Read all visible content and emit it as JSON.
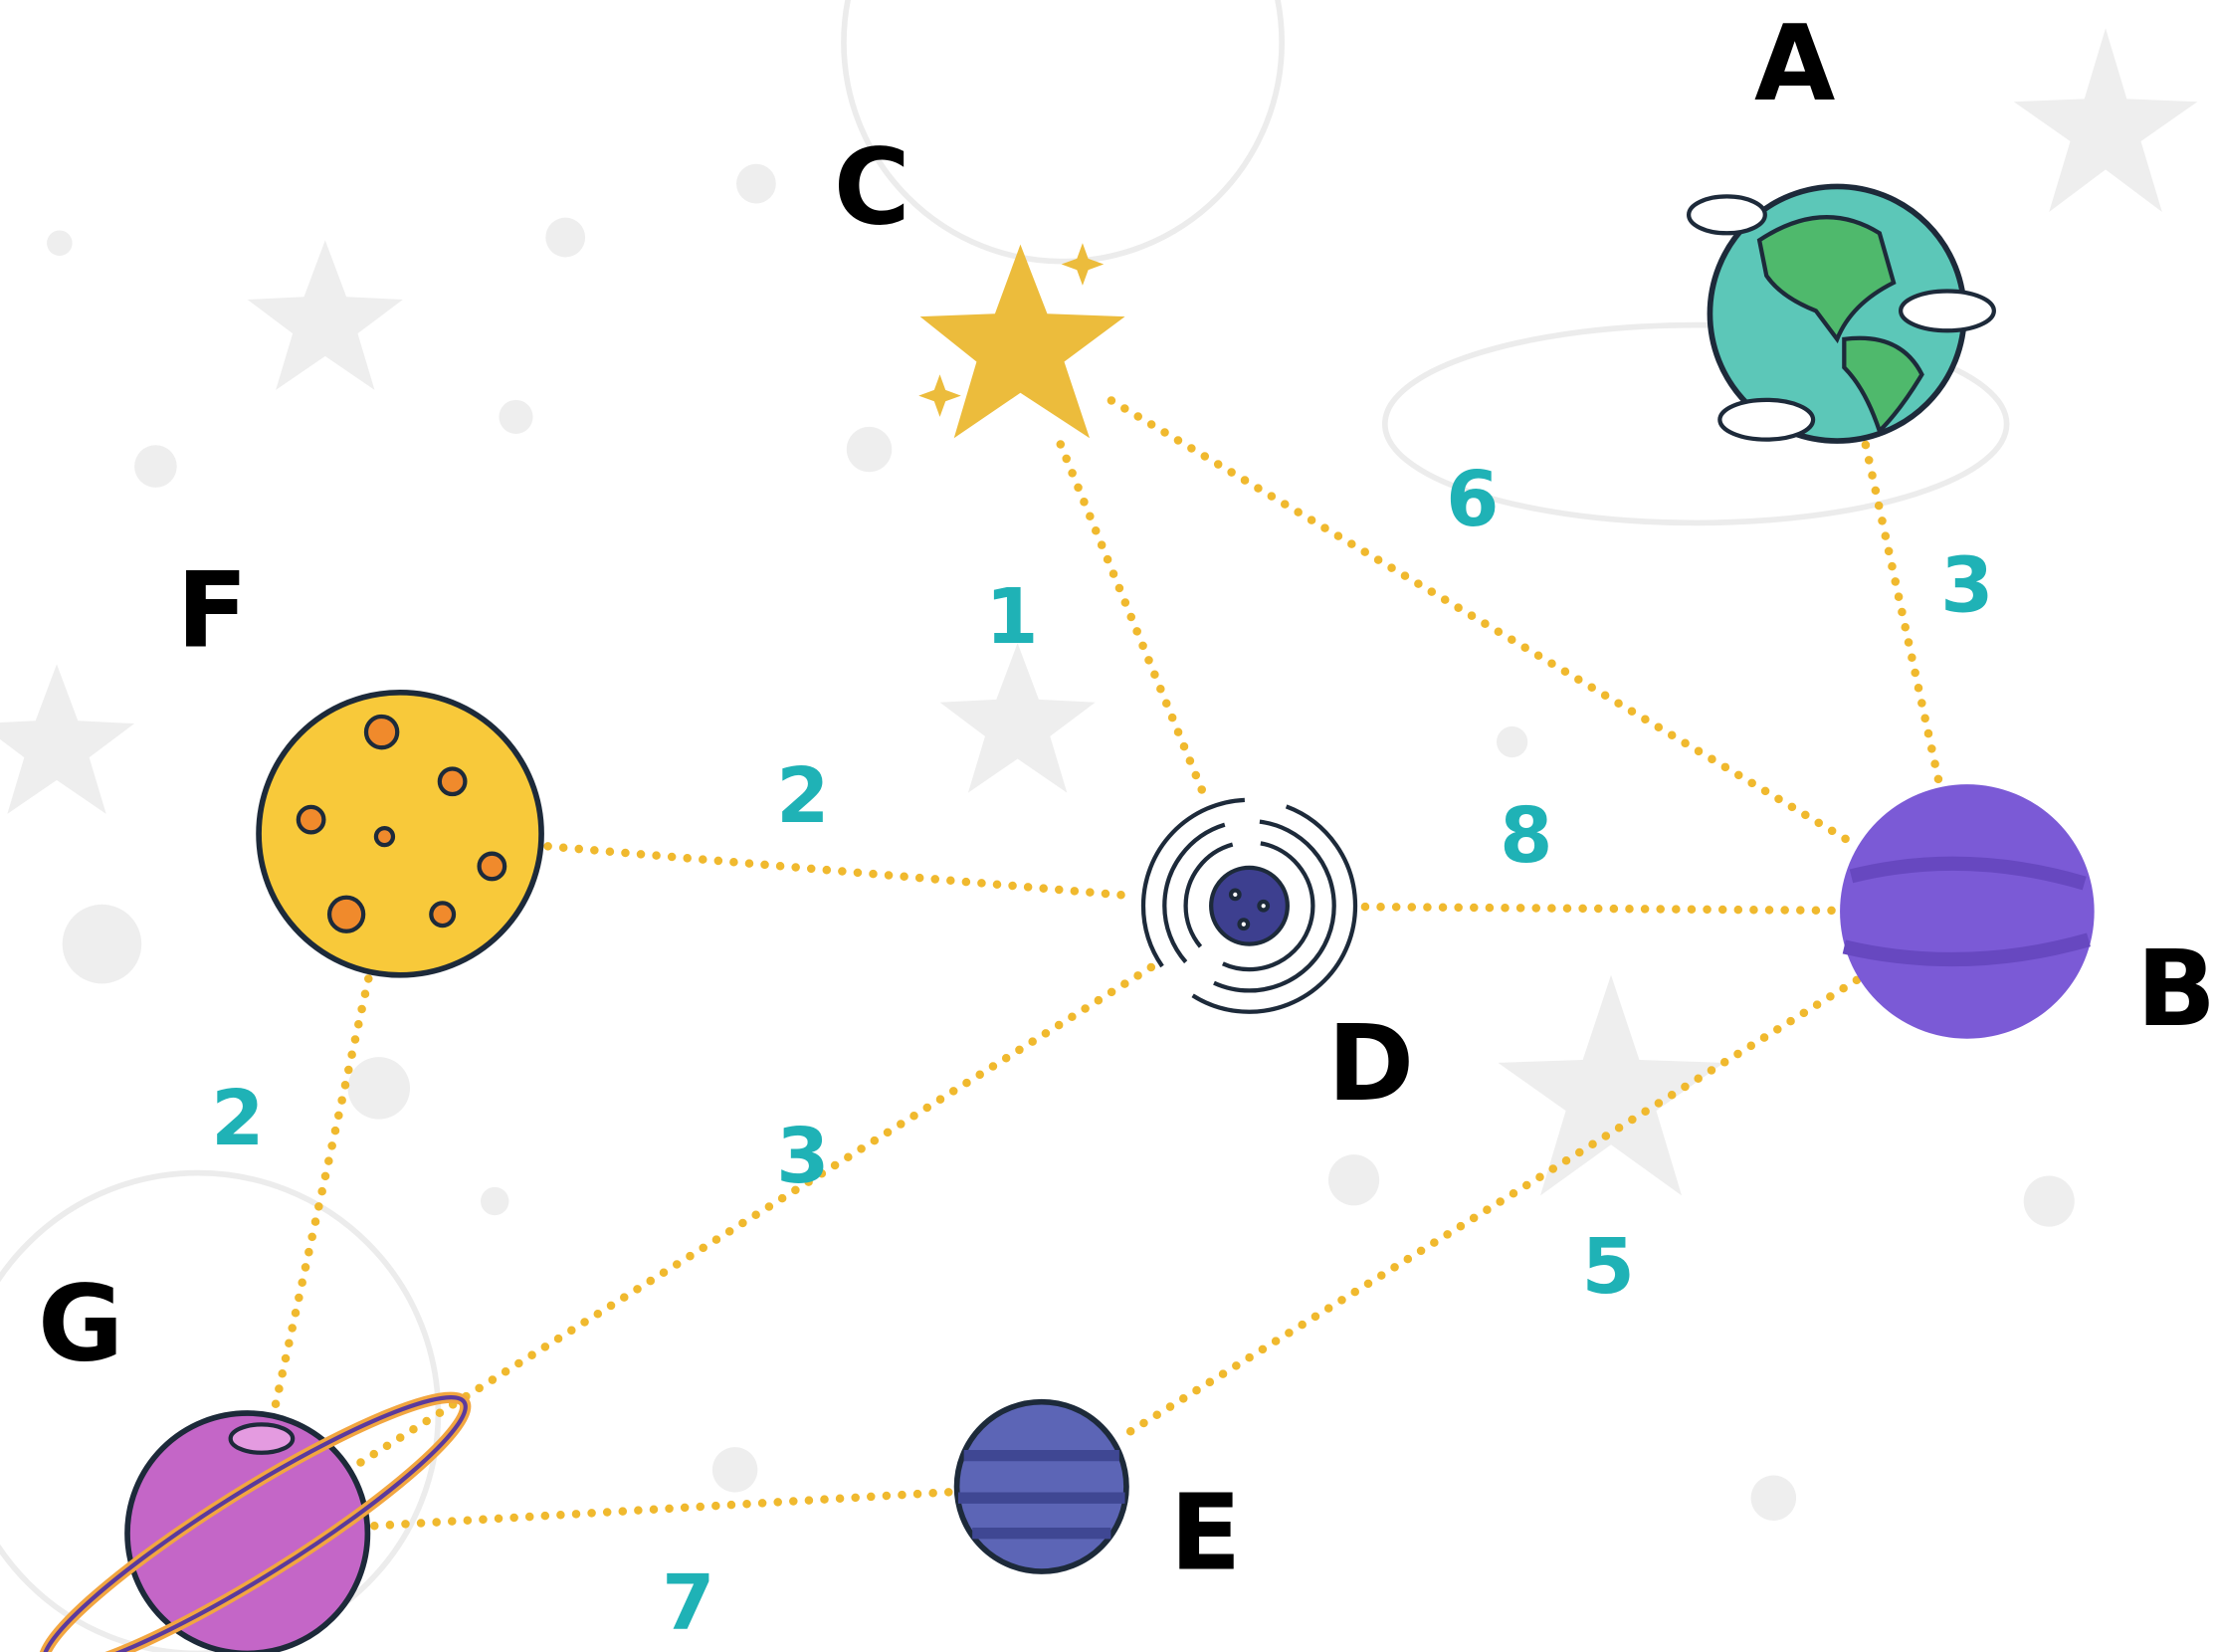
{
  "nodes": [
    {
      "label": "A"
    },
    {
      "label": "B"
    },
    {
      "label": "C"
    },
    {
      "label": "D"
    },
    {
      "label": "E"
    },
    {
      "label": "F"
    },
    {
      "label": "G"
    }
  ],
  "edges": [
    {
      "from": "C",
      "to": "D",
      "weight": 1
    },
    {
      "from": "C",
      "to": "B",
      "weight": 6
    },
    {
      "from": "A",
      "to": "B",
      "weight": 3
    },
    {
      "from": "F",
      "to": "D",
      "weight": 2
    },
    {
      "from": "D",
      "to": "B",
      "weight": 8
    },
    {
      "from": "F",
      "to": "G",
      "weight": 2
    },
    {
      "from": "D",
      "to": "G",
      "weight": 3
    },
    {
      "from": "B",
      "to": "E",
      "weight": 5
    },
    {
      "from": "G",
      "to": "E",
      "weight": 7
    }
  ]
}
